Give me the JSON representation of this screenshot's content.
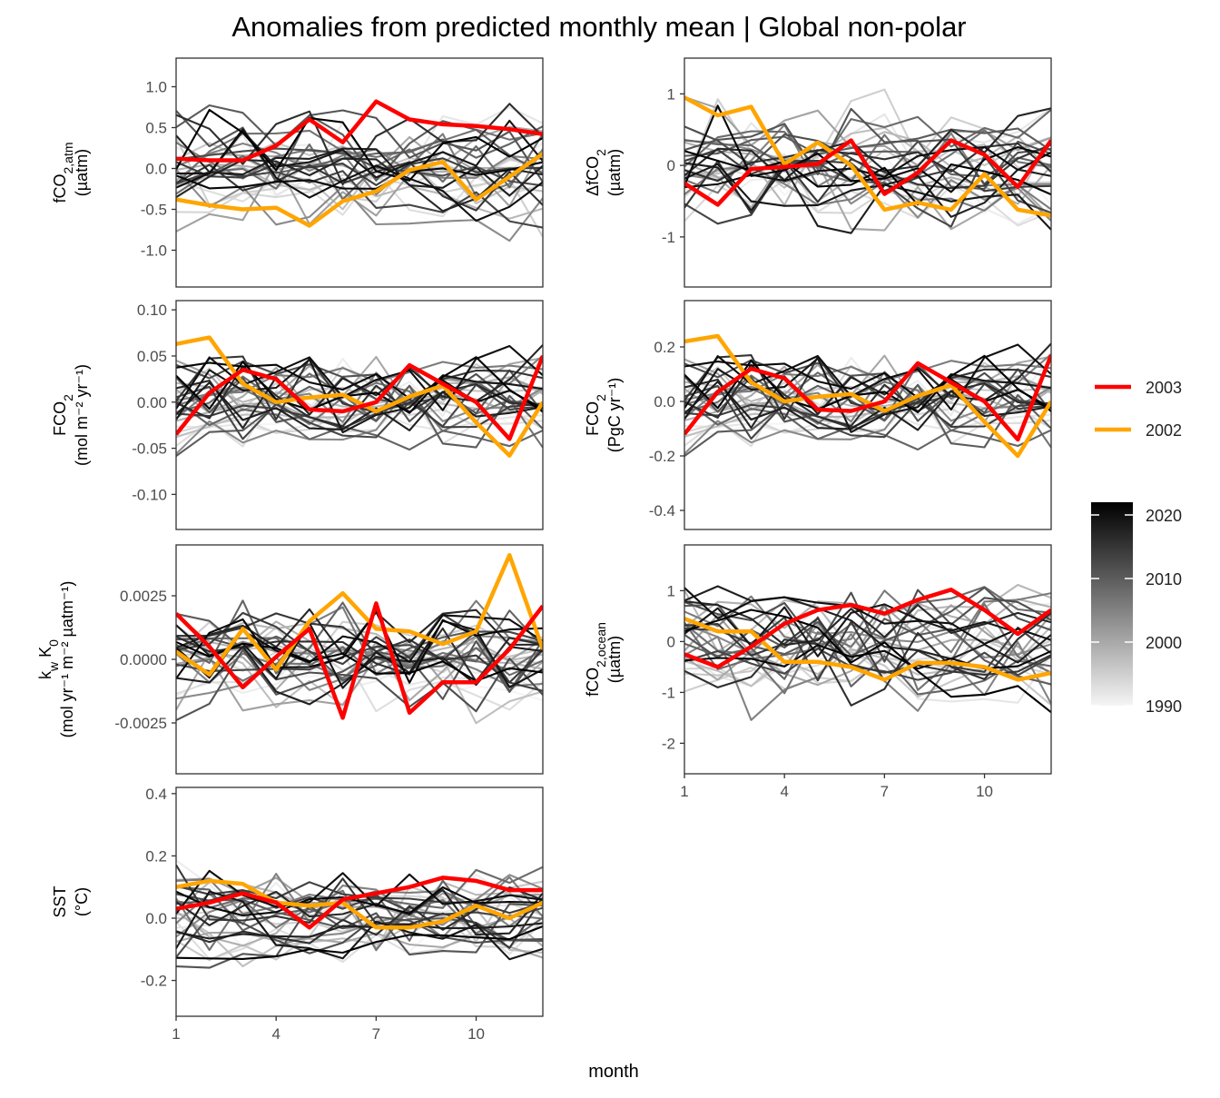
{
  "title": "Anomalies from predicted monthly mean | Global non-polar",
  "colors": {
    "highlight_2003": "#ff0000",
    "highlight_2002": "#ffa500",
    "gradient_light": "#f5f5f5",
    "gradient_dark": "#000000"
  },
  "chart_data": {
    "type": "line",
    "title": "Anomalies from predicted monthly mean | Global non-polar",
    "xlabel": "month",
    "x": [
      1,
      2,
      3,
      4,
      5,
      6,
      7,
      8,
      9,
      10,
      11,
      12
    ],
    "x_ticks": [
      1,
      4,
      7,
      10
    ],
    "x_tick_labels": [
      "1",
      "4",
      "7",
      "10"
    ],
    "grid": false,
    "legend": {
      "placement": "right",
      "highlight_entries": [
        {
          "label": "2003",
          "color": "#ff0000"
        },
        {
          "label": "2002",
          "color": "#ffa500"
        }
      ],
      "colorbar": {
        "label_values": [
          "2020",
          "2010",
          "2000",
          "1990"
        ],
        "range": [
          1990,
          2022
        ]
      }
    },
    "panels": [
      {
        "id": "fco2atm",
        "ylabel_main": "fCO",
        "ylabel_sub": "2,atm",
        "ylabel_sup": "",
        "ylabel_unit": "(µatm)",
        "ylim": [
          -1.45,
          1.35
        ],
        "y_ticks": [
          -1.0,
          -0.5,
          0.0,
          0.5,
          1.0
        ],
        "y_tick_labels": [
          "-1.0",
          "-0.5",
          "0.0",
          "0.5",
          "1.0"
        ],
        "series_2003": [
          0.12,
          0.1,
          0.1,
          0.28,
          0.6,
          0.32,
          0.82,
          0.6,
          0.54,
          0.52,
          0.48,
          0.42
        ],
        "series_2002": [
          -0.38,
          -0.45,
          -0.5,
          -0.48,
          -0.7,
          -0.4,
          -0.28,
          -0.02,
          0.08,
          -0.38,
          -0.1,
          0.18
        ],
        "background_seed": 11,
        "background_scale": 0.42
      },
      {
        "id": "dfco2",
        "ylabel_main": "ΔfCO",
        "ylabel_sub": "2",
        "ylabel_sup": "",
        "ylabel_unit": "(µatm)",
        "ylim": [
          -1.7,
          1.5
        ],
        "y_ticks": [
          -1,
          0,
          1
        ],
        "y_tick_labels": [
          "-1",
          "0",
          "1"
        ],
        "series_2003": [
          -0.25,
          -0.55,
          -0.05,
          -0.02,
          0.02,
          0.35,
          -0.4,
          -0.1,
          0.35,
          0.15,
          -0.3,
          0.35
        ],
        "series_2002": [
          0.95,
          0.7,
          0.82,
          0.02,
          0.32,
          0.0,
          -0.62,
          -0.52,
          -0.62,
          -0.12,
          -0.62,
          -0.7
        ],
        "background_seed": 23,
        "background_scale": 0.55
      },
      {
        "id": "fco2mol",
        "ylabel_main": "FCO",
        "ylabel_sub": "2",
        "ylabel_sup": "",
        "ylabel_unit": "(mol m⁻² yr⁻¹)",
        "ylim": [
          -0.138,
          0.11
        ],
        "y_ticks": [
          -0.1,
          -0.05,
          0.0,
          0.05,
          0.1
        ],
        "y_tick_labels": [
          "-0.10",
          "-0.05",
          "0.00",
          "0.05",
          "0.10"
        ],
        "series_2003": [
          -0.035,
          0.01,
          0.035,
          0.025,
          -0.008,
          -0.01,
          0.0,
          0.04,
          0.02,
          0.0,
          -0.04,
          0.05
        ],
        "series_2002": [
          0.063,
          0.07,
          0.02,
          0.0,
          0.005,
          0.008,
          -0.01,
          0.006,
          0.018,
          -0.022,
          -0.058,
          0.0
        ],
        "background_seed": 37,
        "background_scale": 0.035
      },
      {
        "id": "fco2pgc",
        "ylabel_main": "FCO",
        "ylabel_sub": "2",
        "ylabel_sup": "",
        "ylabel_unit": "(PgC yr⁻¹)",
        "ylim": [
          -0.47,
          0.37
        ],
        "y_ticks": [
          -0.4,
          -0.2,
          0.0,
          0.2
        ],
        "y_tick_labels": [
          "-0.4",
          "-0.2",
          "0.0",
          "0.2"
        ],
        "series_2003": [
          -0.12,
          0.035,
          0.12,
          0.085,
          -0.03,
          -0.035,
          0.0,
          0.14,
          0.07,
          0.0,
          -0.14,
          0.17
        ],
        "series_2002": [
          0.22,
          0.24,
          0.07,
          0.0,
          0.017,
          0.027,
          -0.035,
          0.02,
          0.06,
          -0.075,
          -0.2,
          0.0
        ],
        "background_seed": 37,
        "background_scale": 0.12
      },
      {
        "id": "kwk0",
        "ylabel_main": "k",
        "ylabel_sub": "w",
        "ylabel_sup": "",
        "ylabel_unit": "(mol yr⁻¹ m⁻² µatm⁻¹)",
        "ylabel_main2": " K",
        "ylabel_sub2": "0",
        "ylim": [
          -0.0045,
          0.0045
        ],
        "y_ticks": [
          -0.0025,
          0.0,
          0.0025
        ],
        "y_tick_labels": [
          "-0.0025",
          "0.0000",
          "0.0025"
        ],
        "series_2003": [
          0.0018,
          0.0005,
          -0.0011,
          0.0001,
          0.0012,
          -0.0023,
          0.0022,
          -0.0021,
          -0.0009,
          -0.0009,
          0.0004,
          0.0021
        ],
        "series_2002": [
          0.0003,
          -0.0006,
          0.0012,
          -0.0004,
          0.0015,
          0.0026,
          0.0012,
          0.0011,
          0.0006,
          0.0011,
          0.0041,
          0.0004
        ],
        "background_seed": 53,
        "background_scale": 0.0013
      },
      {
        "id": "fco2ocean",
        "ylabel_main": "fCO",
        "ylabel_sub": "2,ocean",
        "ylabel_sup": "",
        "ylabel_unit": "(µatm)",
        "ylim": [
          -2.6,
          1.9
        ],
        "y_ticks": [
          -2,
          -1,
          0,
          1
        ],
        "y_tick_labels": [
          "-2",
          "-1",
          "0",
          "1"
        ],
        "series_2003": [
          -0.25,
          -0.5,
          -0.1,
          0.35,
          0.62,
          0.72,
          0.55,
          0.82,
          1.02,
          0.62,
          0.15,
          0.62
        ],
        "series_2002": [
          0.45,
          0.2,
          0.2,
          -0.4,
          -0.4,
          -0.5,
          -0.75,
          -0.42,
          -0.42,
          -0.5,
          -0.75,
          -0.62
        ],
        "background_seed": 71,
        "background_scale": 0.8
      },
      {
        "id": "sst",
        "ylabel_main": "SST",
        "ylabel_sub": "",
        "ylabel_sup": "",
        "ylabel_unit": "(°C)",
        "ylim": [
          -0.315,
          0.42
        ],
        "y_ticks": [
          -0.2,
          0.0,
          0.2,
          0.4
        ],
        "y_tick_labels": [
          "-0.2",
          "0.0",
          "0.2",
          "0.4"
        ],
        "series_2003": [
          0.03,
          0.05,
          0.08,
          0.05,
          -0.03,
          0.06,
          0.08,
          0.1,
          0.13,
          0.12,
          0.09,
          0.09
        ],
        "series_2002": [
          0.1,
          0.12,
          0.11,
          0.05,
          0.04,
          0.05,
          -0.03,
          -0.03,
          -0.01,
          0.04,
          0.0,
          0.05
        ],
        "background_seed": 89,
        "background_scale": 0.1
      }
    ]
  }
}
